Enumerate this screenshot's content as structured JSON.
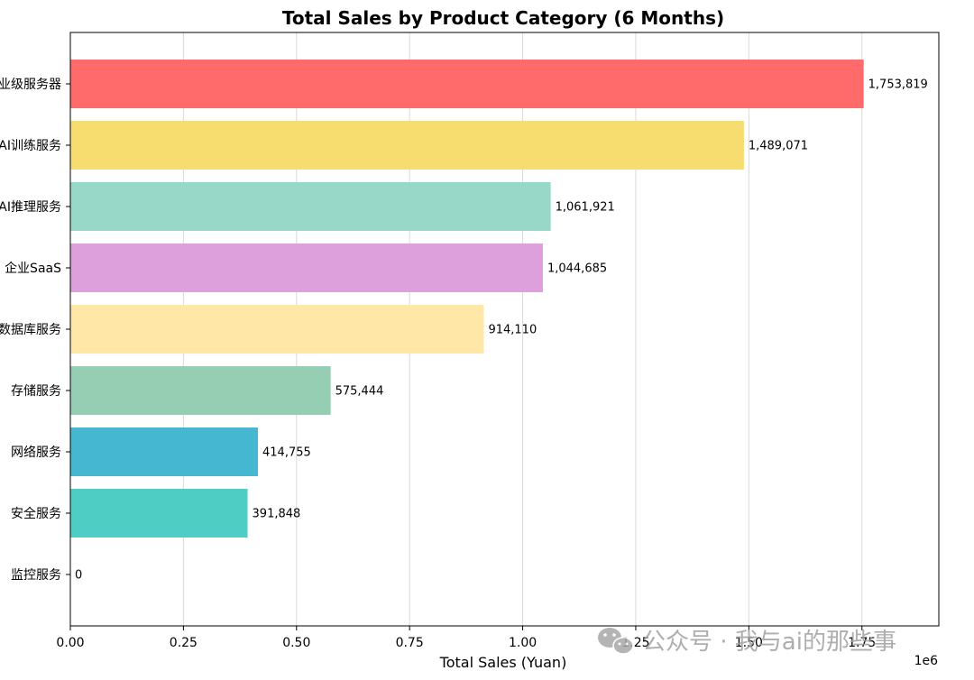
{
  "chart_data": {
    "type": "bar",
    "orientation": "horizontal",
    "title": "Total Sales by Product Category (6 Months)",
    "xlabel": "Total Sales (Yuan)",
    "ylabel": "",
    "xlim": [
      0,
      1920000
    ],
    "x_ticks": [
      0,
      250000,
      500000,
      750000,
      1000000,
      1250000,
      1500000,
      1750000
    ],
    "x_tick_labels": [
      "0.00",
      "0.25",
      "0.50",
      "0.75",
      "1.00",
      "1.25",
      "1.50",
      "1.75"
    ],
    "x_scale_label": "1e6",
    "grid": "vertical",
    "categories": [
      "企业级服务器",
      "AI训练服务",
      "AI推理服务",
      "企业SaaS",
      "数据库服务",
      "存储服务",
      "网络服务",
      "安全服务",
      "监控服务"
    ],
    "values": [
      1753819,
      1489071,
      1061921,
      1044685,
      914110,
      575444,
      414755,
      391848,
      0
    ],
    "value_labels": [
      "1,753,819",
      "1,489,071",
      "1,061,921",
      "1,044,685",
      "914,110",
      "575,444",
      "414,755",
      "391,848",
      "0"
    ],
    "colors": [
      "#ff6b6b",
      "#f7dc6f",
      "#98d8c8",
      "#dda0dd",
      "#ffe7a8",
      "#96ceb4",
      "#45b7d1",
      "#4ecdc4",
      "#cccccc"
    ]
  },
  "watermark": {
    "text": "公众号 · 我与ai的那些事",
    "icon": "wechat-icon"
  }
}
